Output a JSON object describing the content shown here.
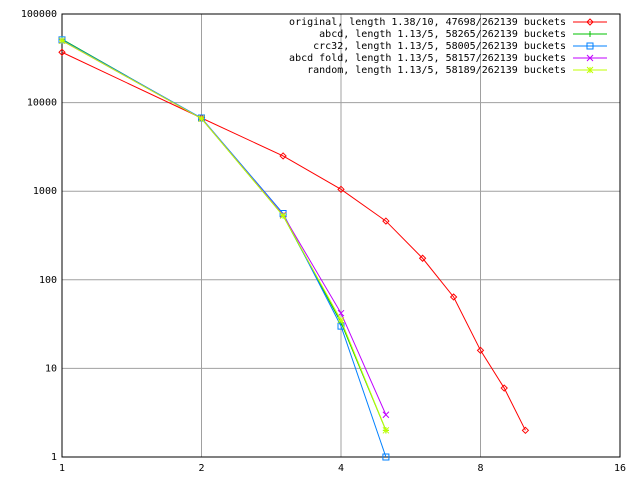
{
  "chart_data": {
    "type": "line",
    "xscale": "log",
    "yscale": "log",
    "xlim": [
      1,
      16
    ],
    "xticks": [
      1,
      2,
      4,
      8,
      16
    ],
    "ylim": [
      1,
      100000
    ],
    "yticks": [
      1,
      10,
      100,
      1000,
      10000,
      100000
    ],
    "grid": true,
    "legend": "top-right",
    "series": [
      {
        "name": "original, length 1.38/10, 47698/262139 buckets",
        "color": "#ff0000",
        "marker": "diamond",
        "x": [
          1,
          2,
          3,
          4,
          5,
          6,
          7,
          8,
          9,
          10
        ],
        "values": [
          37000,
          6700,
          2500,
          1050,
          460,
          175,
          64,
          16,
          6,
          2
        ]
      },
      {
        "name": "abcd, length 1.13/5, 58265/262139 buckets",
        "color": "#00c000",
        "marker": "plus",
        "x": [
          1,
          2,
          3,
          4,
          5
        ],
        "values": [
          52000,
          6600,
          530,
          33,
          2
        ]
      },
      {
        "name": "crc32, length 1.13/5, 58005/262139 buckets",
        "color": "#0080ff",
        "marker": "square",
        "x": [
          1,
          2,
          3,
          4,
          5
        ],
        "values": [
          51000,
          6700,
          560,
          30,
          1
        ]
      },
      {
        "name": "abcd fold, length 1.13/5, 58157/262139 buckets",
        "color": "#c000ff",
        "marker": "cross",
        "x": [
          1,
          2,
          3,
          4,
          5
        ],
        "values": [
          50000,
          6600,
          540,
          42,
          3
        ]
      },
      {
        "name": "random, length 1.13/5, 58189/262139 buckets",
        "color": "#c0ff00",
        "marker": "star",
        "x": [
          1,
          2,
          3,
          4,
          5
        ],
        "values": [
          50000,
          6600,
          530,
          35,
          2
        ]
      }
    ]
  }
}
